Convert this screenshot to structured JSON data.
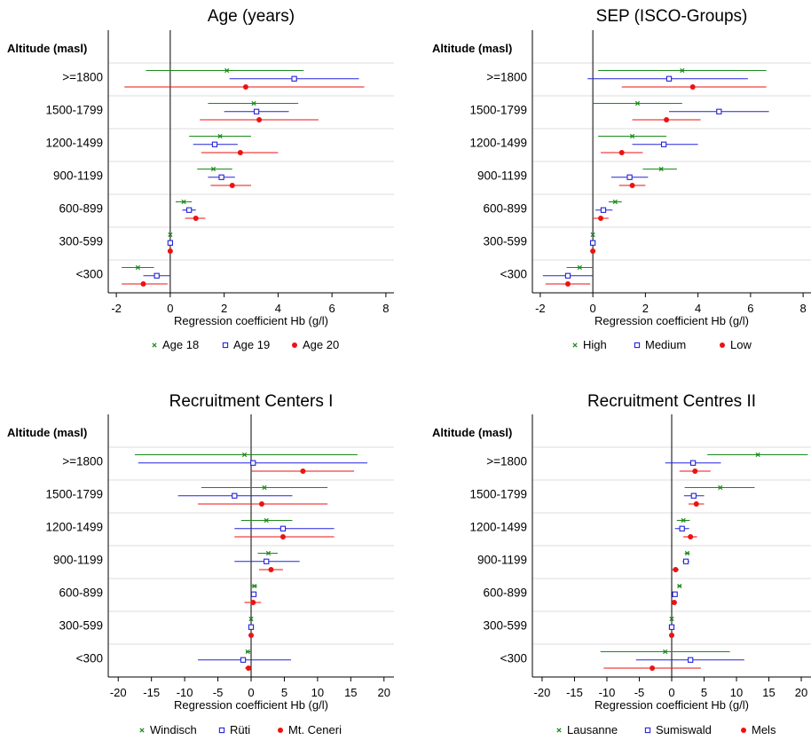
{
  "chart_data": [
    {
      "type": "forest",
      "title": "Age (years)",
      "row_header": "Altitude (masl)",
      "categories": [
        ">=1800",
        "1500-1799",
        "1200-1499",
        "900-1199",
        "600-899",
        "300-599",
        "<300"
      ],
      "xlabel": "Regression coefficient Hb (g/l)",
      "xlim": [
        -2.3,
        8.3
      ],
      "xticks": [
        -2,
        0,
        2,
        4,
        6,
        8
      ],
      "grid": true,
      "legend_position": "bottom",
      "series": [
        {
          "name": "Age 18",
          "color": "#1a8a1a",
          "marker": "x",
          "estimates": [
            2.1,
            3.1,
            1.85,
            1.6,
            0.5,
            0.0,
            -1.2
          ],
          "lower": [
            -0.9,
            1.4,
            0.7,
            1.0,
            0.2,
            0.0,
            -1.8
          ],
          "upper": [
            4.95,
            4.75,
            3.0,
            2.3,
            0.8,
            0.0,
            -0.6
          ]
        },
        {
          "name": "Age 19",
          "color": "#2222dd",
          "marker": "square",
          "estimates": [
            4.6,
            3.2,
            1.65,
            1.9,
            0.7,
            0.0,
            -0.5
          ],
          "lower": [
            2.2,
            2.0,
            0.85,
            1.4,
            0.45,
            0.0,
            -1.0
          ],
          "upper": [
            7.0,
            4.4,
            2.5,
            2.4,
            0.95,
            0.0,
            0.0
          ]
        },
        {
          "name": "Age 20",
          "color": "#ee1111",
          "marker": "dot",
          "estimates": [
            2.8,
            3.3,
            2.6,
            2.3,
            0.95,
            0.0,
            -1.0
          ],
          "lower": [
            -1.7,
            1.1,
            1.15,
            1.5,
            0.55,
            0.0,
            -1.8
          ],
          "upper": [
            7.2,
            5.5,
            4.0,
            3.0,
            1.3,
            0.0,
            -0.1
          ]
        }
      ]
    },
    {
      "type": "forest",
      "title": "SEP (ISCO-Groups)",
      "row_header": "Altitude (masl)",
      "categories": [
        ">=1800",
        "1500-1799",
        "1200-1499",
        "900-1199",
        "600-899",
        "300-599",
        "<300"
      ],
      "xlabel": "Regression coefficient Hb (g/l)",
      "xlim": [
        -2.3,
        8.3
      ],
      "xticks": [
        -2,
        0,
        2,
        4,
        6,
        8
      ],
      "grid": true,
      "legend_position": "bottom",
      "series": [
        {
          "name": "High",
          "color": "#1a8a1a",
          "marker": "x",
          "estimates": [
            3.4,
            1.7,
            1.5,
            2.6,
            0.85,
            0.0,
            -0.5
          ],
          "lower": [
            0.2,
            0.0,
            0.2,
            1.9,
            0.6,
            0.0,
            -1.0
          ],
          "upper": [
            6.6,
            3.4,
            2.8,
            3.2,
            1.1,
            0.0,
            0.0
          ]
        },
        {
          "name": "Medium",
          "color": "#2222dd",
          "marker": "square",
          "estimates": [
            2.9,
            4.8,
            2.7,
            1.4,
            0.4,
            0.0,
            -0.95
          ],
          "lower": [
            -0.2,
            2.9,
            1.5,
            0.7,
            0.1,
            0.0,
            -1.9
          ],
          "upper": [
            5.9,
            6.7,
            4.0,
            2.1,
            0.75,
            0.0,
            0.0
          ]
        },
        {
          "name": "Low",
          "color": "#ee1111",
          "marker": "dot",
          "estimates": [
            3.8,
            2.8,
            1.1,
            1.5,
            0.3,
            0.0,
            -0.95
          ],
          "lower": [
            1.1,
            1.5,
            0.3,
            1.0,
            0.0,
            0.0,
            -1.8
          ],
          "upper": [
            6.6,
            4.1,
            1.9,
            2.0,
            0.6,
            0.0,
            -0.1
          ]
        }
      ]
    },
    {
      "type": "forest",
      "title": "Recruitment Centers I",
      "row_header": "Altitude (masl)",
      "categories": [
        ">=1800",
        "1500-1799",
        "1200-1499",
        "900-1199",
        "600-899",
        "300-599",
        "<300"
      ],
      "xlabel": "Regression coefficient Hb (g/l)",
      "xlim": [
        -21.5,
        21.5
      ],
      "xticks": [
        -20,
        -15,
        -10,
        -5,
        0,
        5,
        10,
        15,
        20
      ],
      "grid": true,
      "legend_position": "bottom",
      "series": [
        {
          "name": "Windisch",
          "color": "#1a8a1a",
          "marker": "x",
          "estimates": [
            -1.0,
            2.0,
            2.3,
            2.6,
            0.5,
            0.0,
            -0.5
          ],
          "lower": [
            -17.5,
            -7.5,
            -1.5,
            1.0,
            0.0,
            0.0,
            -0.8
          ],
          "upper": [
            16.0,
            11.5,
            6.2,
            4.0,
            0.9,
            0.0,
            -0.1
          ]
        },
        {
          "name": "Rüti",
          "color": "#2222dd",
          "marker": "square",
          "estimates": [
            0.3,
            -2.5,
            4.8,
            2.3,
            0.4,
            0.0,
            -1.2
          ],
          "lower": [
            -17.0,
            -11.0,
            -2.5,
            -2.5,
            0.0,
            0.0,
            -8.0
          ],
          "upper": [
            17.5,
            6.2,
            12.5,
            7.3,
            0.8,
            0.0,
            6.0
          ]
        },
        {
          "name": "Mt. Ceneri",
          "color": "#ee1111",
          "marker": "dot",
          "estimates": [
            7.8,
            1.6,
            4.8,
            3.0,
            0.3,
            0.0,
            -0.4
          ],
          "lower": [
            0.0,
            -8.0,
            -2.5,
            1.2,
            -1.0,
            0.0,
            -0.9
          ],
          "upper": [
            15.5,
            11.5,
            12.5,
            4.8,
            1.5,
            0.0,
            0.0
          ]
        }
      ]
    },
    {
      "type": "forest",
      "title": "Recruitment Centres II",
      "row_header": "Altitude (masl)",
      "categories": [
        ">=1800",
        "1500-1799",
        "1200-1499",
        "900-1199",
        "600-899",
        "300-599",
        "<300"
      ],
      "xlabel": "Regression coefficient Hb (g/l)",
      "xlim": [
        -21.5,
        21.5
      ],
      "xticks": [
        -20,
        -15,
        -10,
        -5,
        0,
        5,
        10,
        15,
        20
      ],
      "grid": true,
      "legend_position": "bottom",
      "series": [
        {
          "name": "Lausanne",
          "color": "#1a8a1a",
          "marker": "x",
          "estimates": [
            13.3,
            7.5,
            1.8,
            2.4,
            1.2,
            0.0,
            -1.0
          ],
          "lower": [
            5.5,
            2.0,
            0.8,
            2.0,
            0.9,
            0.0,
            -11.0
          ],
          "upper": [
            21.0,
            12.8,
            2.8,
            2.8,
            1.5,
            0.0,
            9.0
          ]
        },
        {
          "name": "Sumiswald",
          "color": "#2222dd",
          "marker": "square",
          "estimates": [
            3.3,
            3.4,
            1.6,
            2.2,
            0.5,
            0.0,
            2.9
          ],
          "lower": [
            -1.0,
            1.9,
            0.5,
            1.7,
            0.2,
            0.0,
            -5.5
          ],
          "upper": [
            7.6,
            5.0,
            2.7,
            2.7,
            0.8,
            0.0,
            11.2
          ]
        },
        {
          "name": "Mels",
          "color": "#ee1111",
          "marker": "dot",
          "estimates": [
            3.6,
            3.8,
            2.9,
            0.6,
            0.4,
            0.0,
            -3.0
          ],
          "lower": [
            1.2,
            2.6,
            1.8,
            0.1,
            0.1,
            0.0,
            -10.5
          ],
          "upper": [
            6.0,
            5.0,
            3.9,
            1.1,
            0.7,
            0.0,
            4.5
          ]
        }
      ]
    }
  ]
}
